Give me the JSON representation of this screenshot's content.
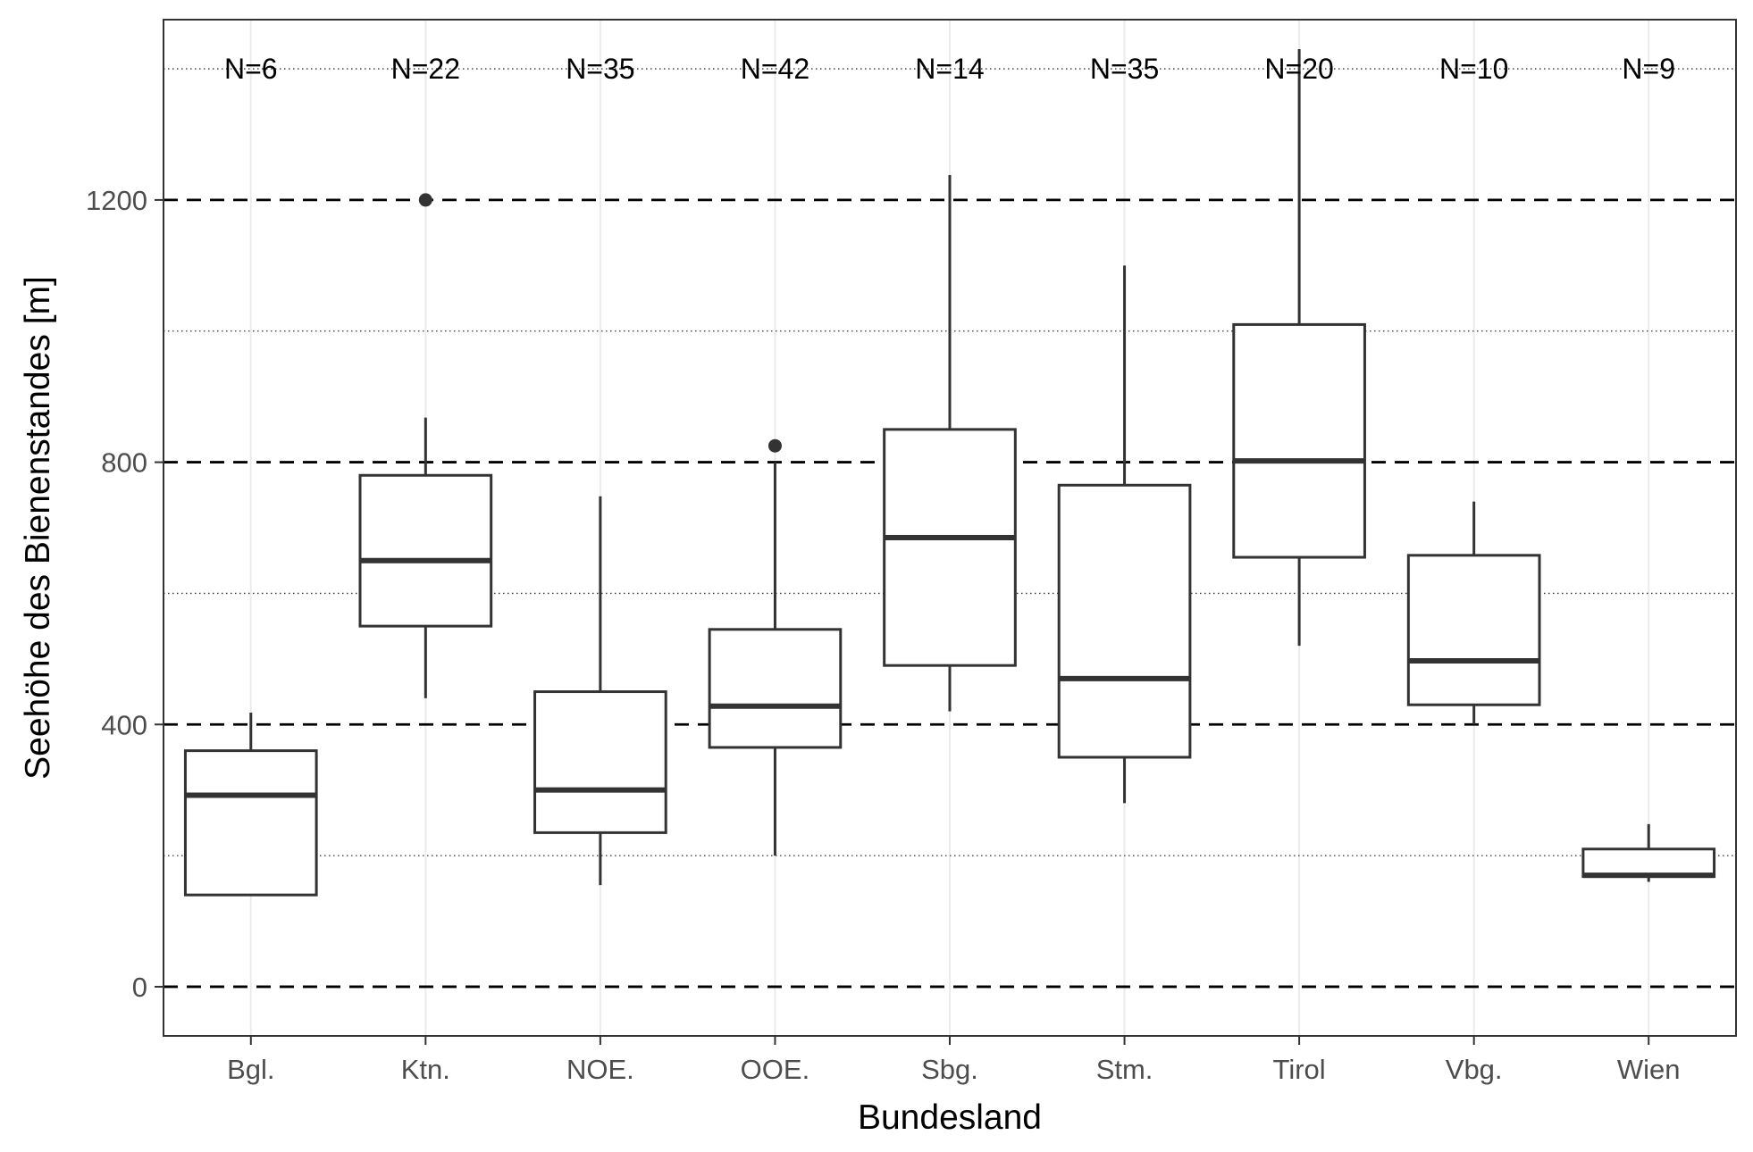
{
  "chart_data": {
    "type": "box",
    "xlabel": "Bundesland",
    "ylabel": "Seehöhe des Bienenstandes [m]",
    "ylim": [
      -75,
      1475
    ],
    "yticks": [
      0,
      400,
      800,
      1200
    ],
    "dashed_reference_lines": [
      0,
      400,
      800,
      1200
    ],
    "minor_gridlines": [
      200,
      600,
      1000,
      1400
    ],
    "grid": true,
    "categories": [
      "Bgl.",
      "Ktn.",
      "NOE.",
      "OOE.",
      "Sbg.",
      "Stm.",
      "Tirol",
      "Vbg.",
      "Wien"
    ],
    "n_labels": [
      "N=6",
      "N=22",
      "N=35",
      "N=42",
      "N=14",
      "N=35",
      "N=20",
      "N=10",
      "N=9"
    ],
    "boxes": [
      {
        "category": "Bgl.",
        "whisker_low": 140,
        "q1": 140,
        "median": 292,
        "q3": 360,
        "whisker_high": 418,
        "outliers": []
      },
      {
        "category": "Ktn.",
        "whisker_low": 440,
        "q1": 550,
        "median": 650,
        "q3": 780,
        "whisker_high": 868,
        "outliers": [
          1200
        ]
      },
      {
        "category": "NOE.",
        "whisker_low": 155,
        "q1": 235,
        "median": 300,
        "q3": 450,
        "whisker_high": 748,
        "outliers": []
      },
      {
        "category": "OOE.",
        "whisker_low": 200,
        "q1": 365,
        "median": 428,
        "q3": 545,
        "whisker_high": 800,
        "outliers": [
          825
        ]
      },
      {
        "category": "Sbg.",
        "whisker_low": 420,
        "q1": 490,
        "median": 685,
        "q3": 850,
        "whisker_high": 1238,
        "outliers": []
      },
      {
        "category": "Stm.",
        "whisker_low": 280,
        "q1": 350,
        "median": 470,
        "q3": 765,
        "whisker_high": 1100,
        "outliers": []
      },
      {
        "category": "Tirol",
        "whisker_low": 520,
        "q1": 655,
        "median": 802,
        "q3": 1010,
        "whisker_high": 1430,
        "outliers": []
      },
      {
        "category": "Vbg.",
        "whisker_low": 400,
        "q1": 430,
        "median": 497,
        "q3": 658,
        "whisker_high": 740,
        "outliers": []
      },
      {
        "category": "Wien",
        "whisker_low": 160,
        "q1": 168,
        "median": 170,
        "q3": 210,
        "whisker_high": 248,
        "outliers": []
      }
    ],
    "colors": {
      "box_line": "#333333",
      "panel_border": "#333333",
      "minor_grid": "#333333",
      "vertical_grid": "#ebebeb",
      "reference_line": "#000000",
      "tick_label": "#4d4d4d"
    }
  }
}
